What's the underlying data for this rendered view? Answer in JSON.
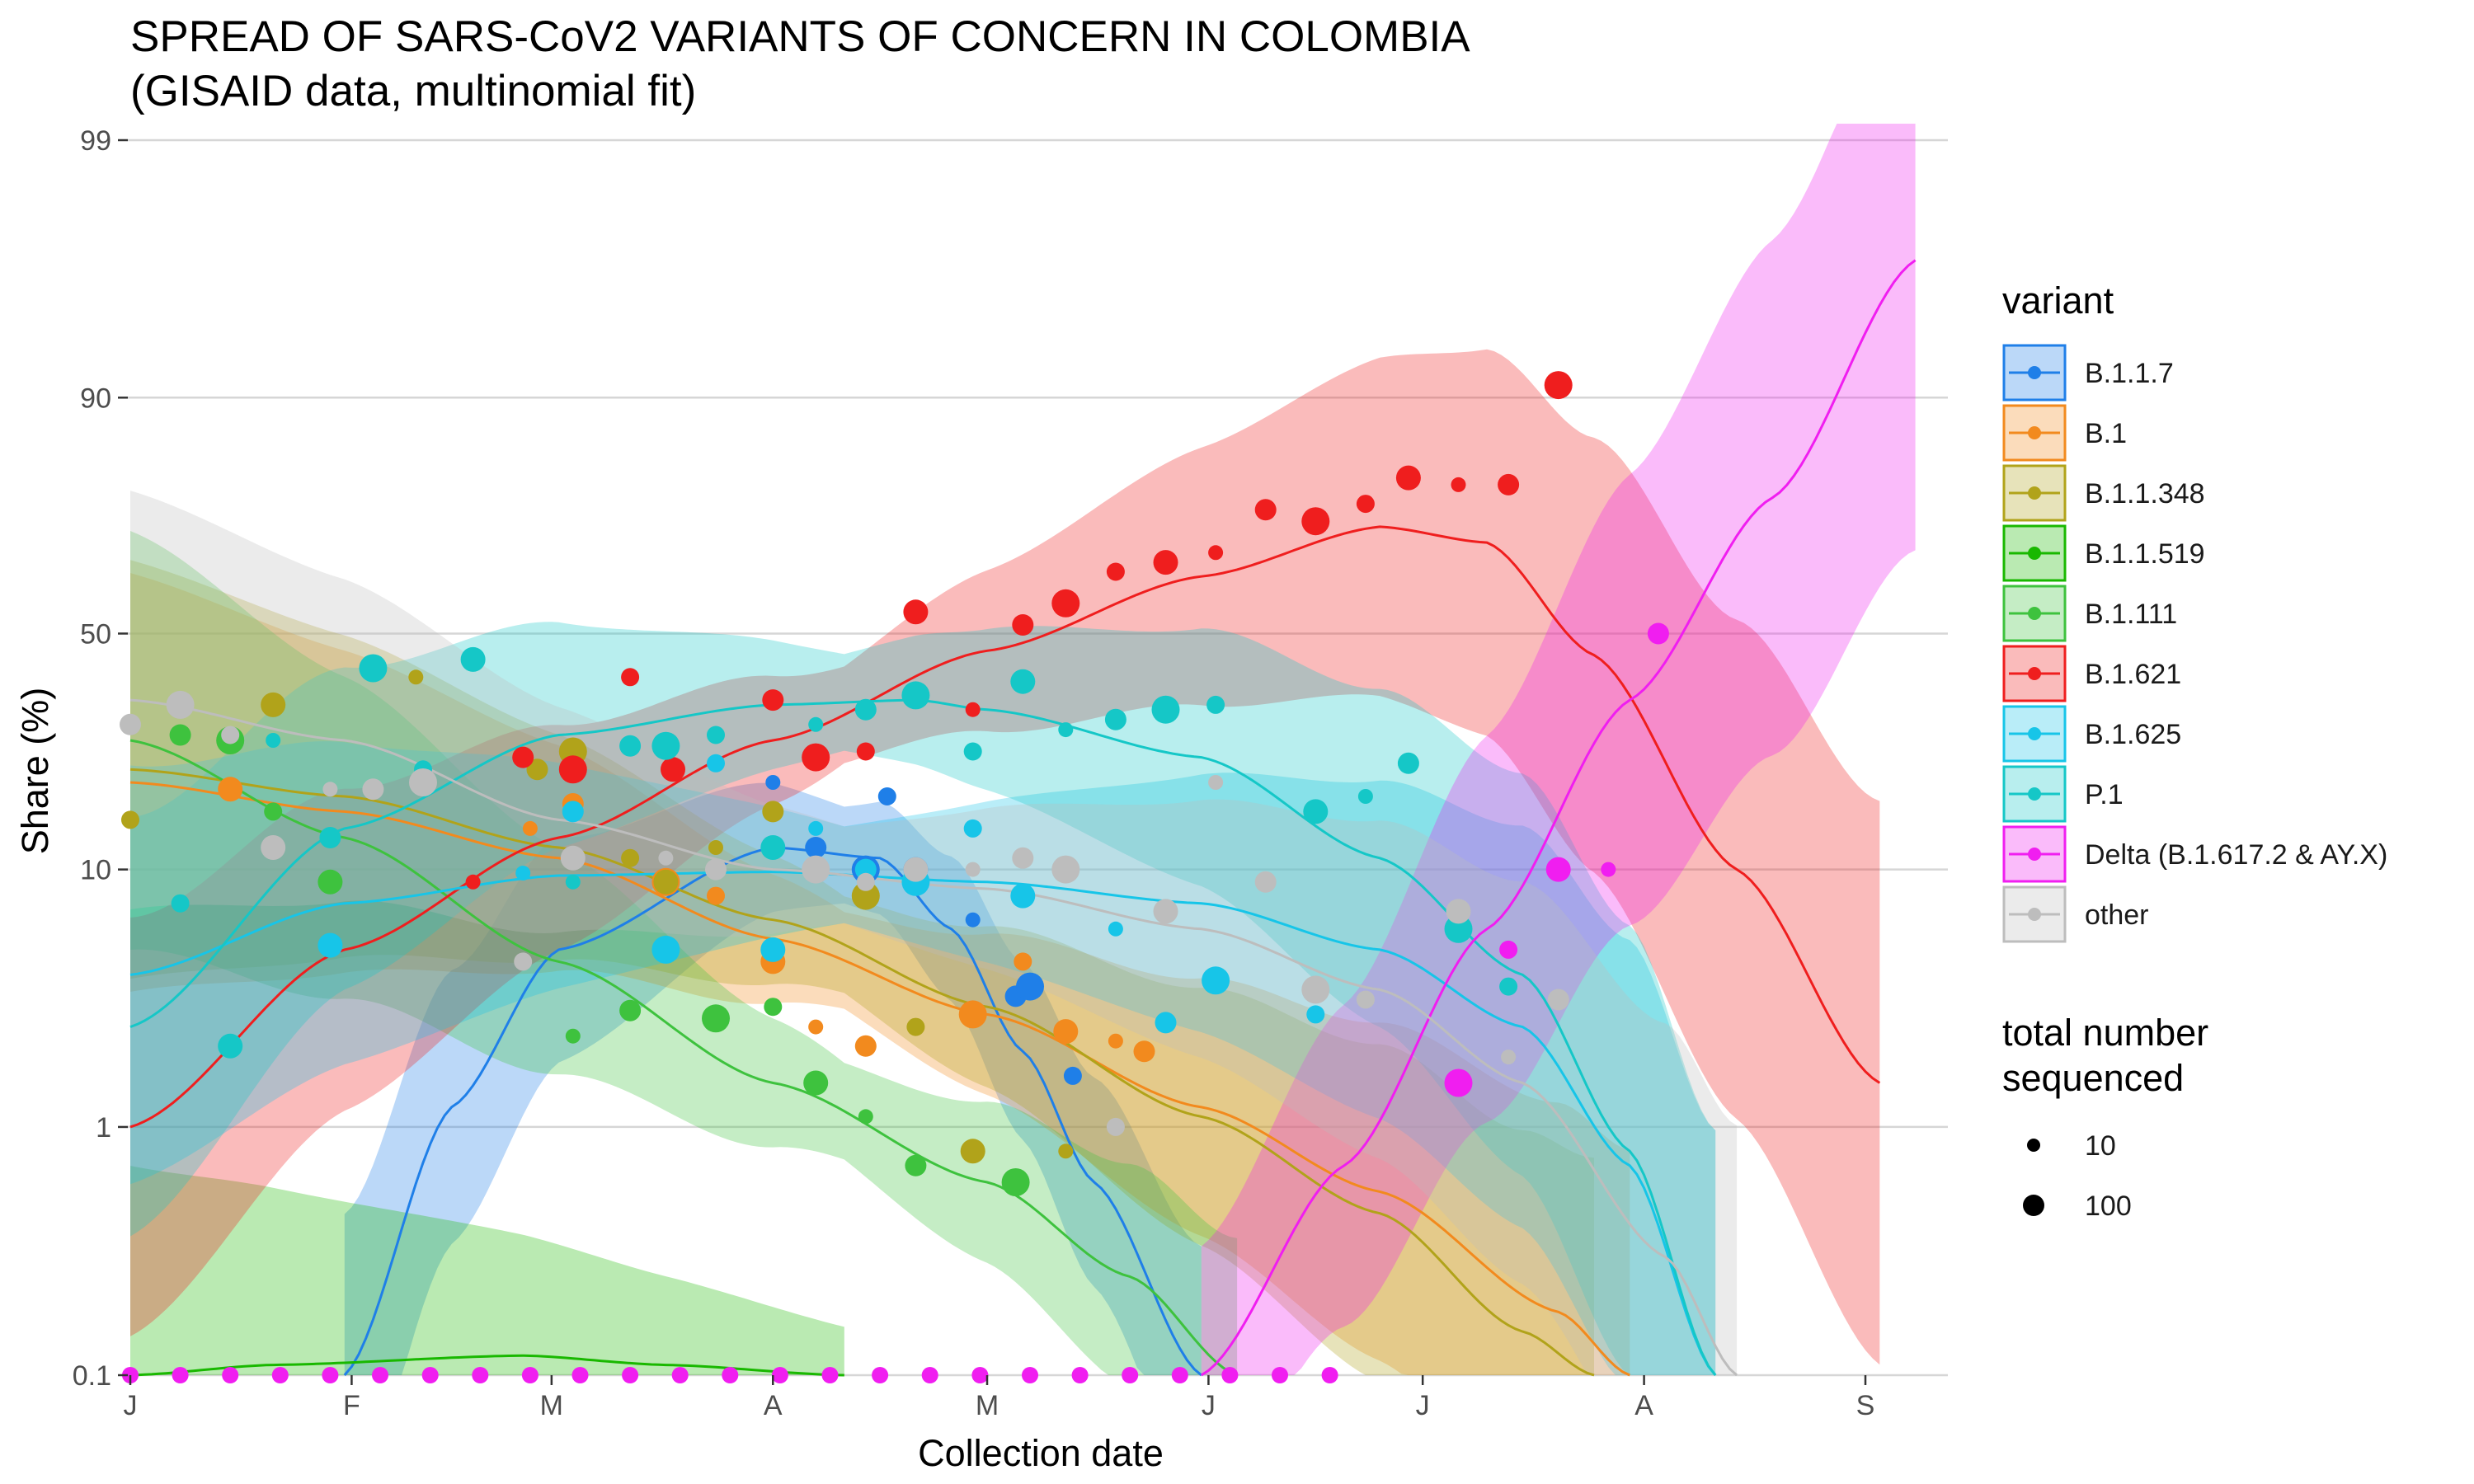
{
  "chart_data": {
    "type": "line",
    "title": "SPREAD OF SARS-CoV2 VARIANTS OF CONCERN IN COLOMBIA",
    "subtitle": "(GISAID data, multinomial fit)",
    "xlabel": "Collection date",
    "ylabel": "Share (%)",
    "x_ticks": [
      {
        "label": "J",
        "day": 0
      },
      {
        "label": "F",
        "day": 31
      },
      {
        "label": "M",
        "day": 59
      },
      {
        "label": "A",
        "day": 90
      },
      {
        "label": "M",
        "day": 120
      },
      {
        "label": "J",
        "day": 151
      },
      {
        "label": "J",
        "day": 181
      },
      {
        "label": "A",
        "day": 212
      },
      {
        "label": "S",
        "day": 243
      }
    ],
    "xlim": [
      "2021-01-01",
      "2021-09-15"
    ],
    "y_scale": "logit",
    "y_ticks": [
      0.1,
      1,
      10,
      50,
      90,
      99
    ],
    "ylim": [
      0.1,
      99
    ],
    "grid": "horizontal major",
    "legend_title": "variant",
    "size_legend": {
      "title_line1": "total number",
      "title_line2": "sequenced",
      "entries": [
        "10",
        "100"
      ]
    },
    "series": [
      {
        "name": "B.1.1.7",
        "color": "#1f7fe8",
        "fit": [
          [
            30,
            0.1
          ],
          [
            45,
            1.2
          ],
          [
            60,
            5
          ],
          [
            90,
            12
          ],
          [
            105,
            11
          ],
          [
            115,
            6
          ],
          [
            125,
            2
          ],
          [
            135,
            0.6
          ],
          [
            150,
            0.1
          ]
        ],
        "points": [
          [
            90,
            20
          ],
          [
            96,
            12
          ],
          [
            103,
            10
          ],
          [
            106,
            18
          ],
          [
            110,
            10
          ],
          [
            118,
            6.5
          ],
          [
            124,
            3.3
          ],
          [
            126,
            3.6
          ],
          [
            132,
            1.6
          ]
        ]
      },
      {
        "name": "B.1",
        "color": "#f28a1e",
        "fit": [
          [
            0,
            20
          ],
          [
            30,
            16
          ],
          [
            60,
            11
          ],
          [
            90,
            5.5
          ],
          [
            120,
            2.8
          ],
          [
            150,
            1.2
          ],
          [
            175,
            0.55
          ],
          [
            200,
            0.18
          ],
          [
            210,
            0.1
          ]
        ],
        "points": [
          [
            14,
            19
          ],
          [
            56,
            14
          ],
          [
            62,
            17
          ],
          [
            75,
            9
          ],
          [
            82,
            8
          ],
          [
            90,
            4.5
          ],
          [
            96,
            2.5
          ],
          [
            103,
            2.1
          ],
          [
            118,
            2.8
          ],
          [
            125,
            4.5
          ],
          [
            131,
            2.4
          ],
          [
            138,
            2.2
          ],
          [
            142,
            2
          ]
        ]
      },
      {
        "name": "B.1.1.348",
        "color": "#b1a31a",
        "fit": [
          [
            0,
            22
          ],
          [
            30,
            18
          ],
          [
            60,
            12
          ],
          [
            90,
            6.5
          ],
          [
            120,
            3
          ],
          [
            150,
            1.1
          ],
          [
            175,
            0.45
          ],
          [
            195,
            0.15
          ],
          [
            205,
            0.1
          ]
        ],
        "points": [
          [
            0,
            15
          ],
          [
            20,
            34
          ],
          [
            40,
            40
          ],
          [
            57,
            22
          ],
          [
            62,
            25
          ],
          [
            70,
            11
          ],
          [
            75,
            9
          ],
          [
            82,
            12
          ],
          [
            90,
            16
          ],
          [
            103,
            8
          ],
          [
            110,
            2.5
          ],
          [
            118,
            0.8
          ],
          [
            131,
            0.8
          ]
        ]
      },
      {
        "name": "B.1.1.519",
        "color": "#19b800",
        "fit": [
          [
            0,
            0.1
          ],
          [
            20,
            0.11
          ],
          [
            55,
            0.12
          ],
          [
            75,
            0.11
          ],
          [
            100,
            0.1
          ]
        ],
        "points": []
      },
      {
        "name": "B.1.111",
        "color": "#3ec23e",
        "fit": [
          [
            0,
            27
          ],
          [
            30,
            13
          ],
          [
            60,
            4.5
          ],
          [
            90,
            1.5
          ],
          [
            120,
            0.6
          ],
          [
            140,
            0.25
          ],
          [
            155,
            0.1
          ]
        ],
        "points": [
          [
            7,
            28
          ],
          [
            14,
            27
          ],
          [
            20,
            16
          ],
          [
            28,
            9
          ],
          [
            62,
            2.3
          ],
          [
            70,
            2.9
          ],
          [
            82,
            2.7
          ],
          [
            90,
            3
          ],
          [
            96,
            1.5
          ],
          [
            103,
            1.1
          ],
          [
            110,
            0.7
          ],
          [
            124,
            0.6
          ]
        ]
      },
      {
        "name": "B.1.621",
        "color": "#ef1e1e",
        "fit": [
          [
            0,
            1
          ],
          [
            30,
            5
          ],
          [
            60,
            13
          ],
          [
            90,
            27
          ],
          [
            120,
            46
          ],
          [
            150,
            63
          ],
          [
            175,
            73
          ],
          [
            190,
            70
          ],
          [
            205,
            45
          ],
          [
            225,
            10
          ],
          [
            245,
            1.5
          ]
        ],
        "points": [
          [
            48,
            9
          ],
          [
            55,
            24
          ],
          [
            62,
            22
          ],
          [
            70,
            40
          ],
          [
            76,
            22
          ],
          [
            82,
            28
          ],
          [
            90,
            35
          ],
          [
            96,
            24
          ],
          [
            103,
            25
          ],
          [
            110,
            55
          ],
          [
            118,
            33
          ],
          [
            125,
            52
          ],
          [
            131,
            57
          ],
          [
            138,
            64
          ],
          [
            145,
            66
          ],
          [
            152,
            68
          ],
          [
            159,
            76
          ],
          [
            166,
            74
          ],
          [
            173,
            77
          ],
          [
            179,
            81
          ],
          [
            186,
            80
          ],
          [
            193,
            80
          ],
          [
            200,
            91
          ]
        ]
      },
      {
        "name": "B.1.625",
        "color": "#17c5e8",
        "fit": [
          [
            0,
            4
          ],
          [
            30,
            7.5
          ],
          [
            60,
            9.5
          ],
          [
            90,
            9.8
          ],
          [
            120,
            9
          ],
          [
            150,
            7.5
          ],
          [
            175,
            5
          ],
          [
            195,
            2.5
          ],
          [
            210,
            0.7
          ],
          [
            222,
            0.1
          ]
        ],
        "points": [
          [
            28,
            5.2
          ],
          [
            55,
            9.7
          ],
          [
            62,
            16
          ],
          [
            75,
            5
          ],
          [
            82,
            23
          ],
          [
            90,
            5
          ],
          [
            96,
            14
          ],
          [
            103,
            10
          ],
          [
            110,
            9
          ],
          [
            118,
            14
          ],
          [
            125,
            8
          ],
          [
            138,
            6
          ],
          [
            145,
            2.6
          ],
          [
            152,
            3.8
          ],
          [
            166,
            2.8
          ]
        ]
      },
      {
        "name": "P.1",
        "color": "#15c7c7",
        "fit": [
          [
            0,
            2.5
          ],
          [
            30,
            14
          ],
          [
            60,
            28
          ],
          [
            90,
            34
          ],
          [
            110,
            35
          ],
          [
            120,
            33
          ],
          [
            150,
            24
          ],
          [
            175,
            11
          ],
          [
            195,
            4
          ],
          [
            210,
            0.8
          ],
          [
            222,
            0.1
          ]
        ],
        "points": [
          [
            7,
            7.5
          ],
          [
            14,
            2.1
          ],
          [
            20,
            27
          ],
          [
            28,
            13
          ],
          [
            34,
            42
          ],
          [
            41,
            22
          ],
          [
            48,
            44
          ],
          [
            62,
            9
          ],
          [
            70,
            26
          ],
          [
            75,
            26
          ],
          [
            82,
            28
          ],
          [
            90,
            12
          ],
          [
            96,
            30
          ],
          [
            103,
            33
          ],
          [
            110,
            36
          ],
          [
            118,
            25
          ],
          [
            125,
            39
          ],
          [
            131,
            29
          ],
          [
            138,
            31
          ],
          [
            145,
            33
          ],
          [
            152,
            34
          ],
          [
            166,
            16
          ],
          [
            173,
            18
          ],
          [
            179,
            23
          ],
          [
            186,
            6
          ],
          [
            193,
            3.6
          ]
        ]
      },
      {
        "name": "Delta (B.1.617.2 & AY.X)",
        "color": "#f01ef0",
        "fit": [
          [
            150,
            0.1
          ],
          [
            170,
            0.7
          ],
          [
            190,
            6
          ],
          [
            210,
            35
          ],
          [
            230,
            78
          ],
          [
            250,
            97
          ]
        ],
        "points": [
          [
            186,
            1.5
          ],
          [
            193,
            5
          ],
          [
            200,
            10
          ],
          [
            207,
            10
          ],
          [
            214,
            50
          ]
        ]
      },
      {
        "name": "other",
        "color": "#bdbdbd",
        "fit": [
          [
            0,
            35
          ],
          [
            30,
            27
          ],
          [
            60,
            15
          ],
          [
            90,
            10
          ],
          [
            120,
            8.5
          ],
          [
            150,
            6
          ],
          [
            175,
            3.5
          ],
          [
            195,
            1.5
          ],
          [
            215,
            0.3
          ],
          [
            225,
            0.1
          ]
        ],
        "points": [
          [
            0,
            30
          ],
          [
            7,
            34
          ],
          [
            14,
            28
          ],
          [
            20,
            12
          ],
          [
            28,
            19
          ],
          [
            34,
            19
          ],
          [
            41,
            20
          ],
          [
            55,
            4.5
          ],
          [
            62,
            11
          ],
          [
            75,
            11
          ],
          [
            82,
            10
          ],
          [
            96,
            10
          ],
          [
            103,
            9
          ],
          [
            110,
            10
          ],
          [
            118,
            10
          ],
          [
            125,
            11
          ],
          [
            131,
            10
          ],
          [
            138,
            1
          ],
          [
            145,
            7
          ],
          [
            152,
            20
          ],
          [
            159,
            9
          ],
          [
            166,
            3.5
          ],
          [
            173,
            3.2
          ],
          [
            186,
            7
          ],
          [
            193,
            1.9
          ],
          [
            200,
            3.2
          ]
        ]
      }
    ]
  }
}
